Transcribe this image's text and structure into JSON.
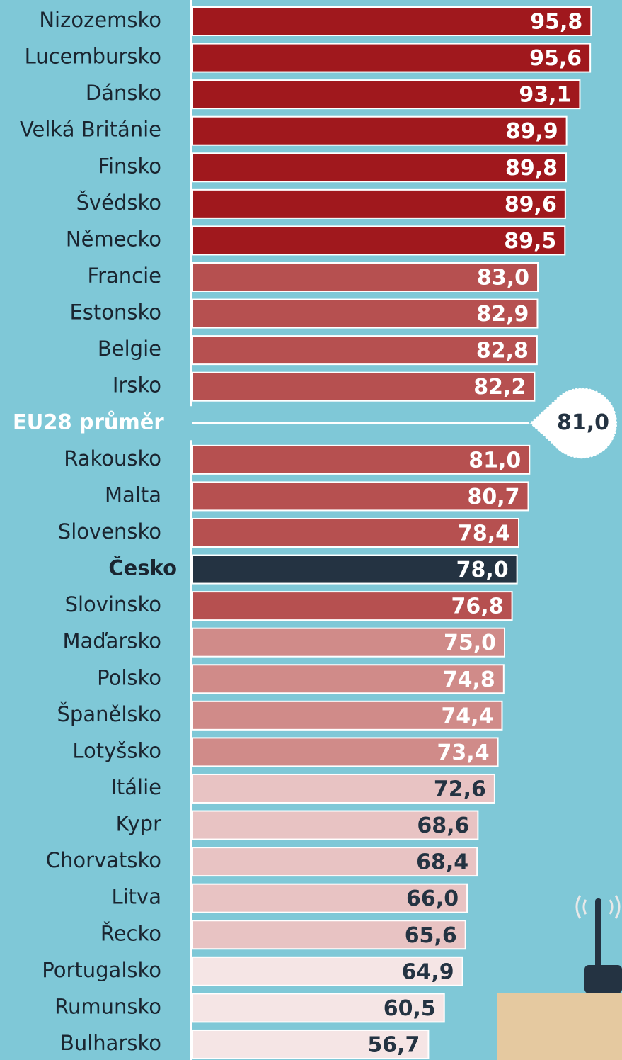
{
  "chart_data": {
    "type": "hbar",
    "categories": [
      "Nizozemsko",
      "Lucembursko",
      "Dánsko",
      "Velká Británie",
      "Finsko",
      "Švédsko",
      "Německo",
      "Francie",
      "Estonsko",
      "Belgie",
      "Irsko",
      "Rakousko",
      "Malta",
      "Slovensko",
      "Česko",
      "Slovinsko",
      "Maďarsko",
      "Polsko",
      "Španělsko",
      "Lotyšsko",
      "Itálie",
      "Kypr",
      "Chorvatsko",
      "Litva",
      "Řecko",
      "Portugalsko",
      "Rumunsko",
      "Bulharsko"
    ],
    "values": [
      95.8,
      95.6,
      93.1,
      89.9,
      89.8,
      89.6,
      89.5,
      83.0,
      82.9,
      82.8,
      82.2,
      81.0,
      80.7,
      78.4,
      78.0,
      76.8,
      75.0,
      74.8,
      74.4,
      73.4,
      72.6,
      68.6,
      68.4,
      66.0,
      65.6,
      64.9,
      60.5,
      56.7
    ],
    "value_labels": [
      "95,8",
      "95,6",
      "93,1",
      "89,9",
      "89,8",
      "89,6",
      "89,5",
      "83,0",
      "82,9",
      "82,8",
      "82,2",
      "81,0",
      "80,7",
      "78,4",
      "78,0",
      "76,8",
      "75,0",
      "74,8",
      "74,4",
      "73,4",
      "72,6",
      "68,6",
      "68,4",
      "66,0",
      "65,6",
      "64,9",
      "60,5",
      "56,7"
    ],
    "colors": [
      "#a0181d",
      "#a0181d",
      "#a0181d",
      "#a0181d",
      "#a0181d",
      "#a0181d",
      "#a0181d",
      "#b65050",
      "#b65050",
      "#b65050",
      "#b65050",
      "#b65050",
      "#b65050",
      "#b65050",
      "#243342",
      "#b65050",
      "#d08b89",
      "#d08b89",
      "#d08b89",
      "#d08b89",
      "#e8c3c3",
      "#e8c3c3",
      "#e8c3c3",
      "#e8c3c3",
      "#e8c3c3",
      "#f5e5e5",
      "#f5e5e5",
      "#f5e5e5"
    ],
    "highlight": 14,
    "average": {
      "label": "EU28 průměr",
      "value": 81.0,
      "value_label": "81,0"
    },
    "xlim": [
      0,
      100
    ]
  }
}
